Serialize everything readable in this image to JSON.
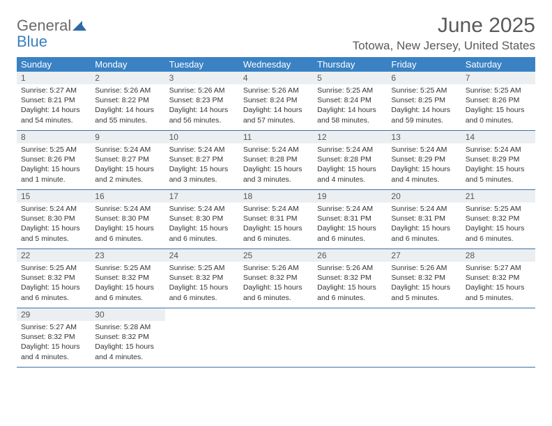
{
  "logo": {
    "general": "General",
    "blue": "Blue"
  },
  "title": "June 2025",
  "location": "Totowa, New Jersey, United States",
  "colors": {
    "header_bg": "#3a82c4",
    "header_text": "#ffffff",
    "rule": "#3a6fa5",
    "daynum_bg": "#eceff1",
    "body_text": "#333333",
    "title_text": "#5a5a5a",
    "logo_gray": "#6a6a6a",
    "logo_blue": "#3a7fbf"
  },
  "day_names": [
    "Sunday",
    "Monday",
    "Tuesday",
    "Wednesday",
    "Thursday",
    "Friday",
    "Saturday"
  ],
  "weeks": [
    [
      {
        "n": "1",
        "sr": "Sunrise: 5:27 AM",
        "ss": "Sunset: 8:21 PM",
        "d1": "Daylight: 14 hours",
        "d2": "and 54 minutes."
      },
      {
        "n": "2",
        "sr": "Sunrise: 5:26 AM",
        "ss": "Sunset: 8:22 PM",
        "d1": "Daylight: 14 hours",
        "d2": "and 55 minutes."
      },
      {
        "n": "3",
        "sr": "Sunrise: 5:26 AM",
        "ss": "Sunset: 8:23 PM",
        "d1": "Daylight: 14 hours",
        "d2": "and 56 minutes."
      },
      {
        "n": "4",
        "sr": "Sunrise: 5:26 AM",
        "ss": "Sunset: 8:24 PM",
        "d1": "Daylight: 14 hours",
        "d2": "and 57 minutes."
      },
      {
        "n": "5",
        "sr": "Sunrise: 5:25 AM",
        "ss": "Sunset: 8:24 PM",
        "d1": "Daylight: 14 hours",
        "d2": "and 58 minutes."
      },
      {
        "n": "6",
        "sr": "Sunrise: 5:25 AM",
        "ss": "Sunset: 8:25 PM",
        "d1": "Daylight: 14 hours",
        "d2": "and 59 minutes."
      },
      {
        "n": "7",
        "sr": "Sunrise: 5:25 AM",
        "ss": "Sunset: 8:26 PM",
        "d1": "Daylight: 15 hours",
        "d2": "and 0 minutes."
      }
    ],
    [
      {
        "n": "8",
        "sr": "Sunrise: 5:25 AM",
        "ss": "Sunset: 8:26 PM",
        "d1": "Daylight: 15 hours",
        "d2": "and 1 minute."
      },
      {
        "n": "9",
        "sr": "Sunrise: 5:24 AM",
        "ss": "Sunset: 8:27 PM",
        "d1": "Daylight: 15 hours",
        "d2": "and 2 minutes."
      },
      {
        "n": "10",
        "sr": "Sunrise: 5:24 AM",
        "ss": "Sunset: 8:27 PM",
        "d1": "Daylight: 15 hours",
        "d2": "and 3 minutes."
      },
      {
        "n": "11",
        "sr": "Sunrise: 5:24 AM",
        "ss": "Sunset: 8:28 PM",
        "d1": "Daylight: 15 hours",
        "d2": "and 3 minutes."
      },
      {
        "n": "12",
        "sr": "Sunrise: 5:24 AM",
        "ss": "Sunset: 8:28 PM",
        "d1": "Daylight: 15 hours",
        "d2": "and 4 minutes."
      },
      {
        "n": "13",
        "sr": "Sunrise: 5:24 AM",
        "ss": "Sunset: 8:29 PM",
        "d1": "Daylight: 15 hours",
        "d2": "and 4 minutes."
      },
      {
        "n": "14",
        "sr": "Sunrise: 5:24 AM",
        "ss": "Sunset: 8:29 PM",
        "d1": "Daylight: 15 hours",
        "d2": "and 5 minutes."
      }
    ],
    [
      {
        "n": "15",
        "sr": "Sunrise: 5:24 AM",
        "ss": "Sunset: 8:30 PM",
        "d1": "Daylight: 15 hours",
        "d2": "and 5 minutes."
      },
      {
        "n": "16",
        "sr": "Sunrise: 5:24 AM",
        "ss": "Sunset: 8:30 PM",
        "d1": "Daylight: 15 hours",
        "d2": "and 6 minutes."
      },
      {
        "n": "17",
        "sr": "Sunrise: 5:24 AM",
        "ss": "Sunset: 8:30 PM",
        "d1": "Daylight: 15 hours",
        "d2": "and 6 minutes."
      },
      {
        "n": "18",
        "sr": "Sunrise: 5:24 AM",
        "ss": "Sunset: 8:31 PM",
        "d1": "Daylight: 15 hours",
        "d2": "and 6 minutes."
      },
      {
        "n": "19",
        "sr": "Sunrise: 5:24 AM",
        "ss": "Sunset: 8:31 PM",
        "d1": "Daylight: 15 hours",
        "d2": "and 6 minutes."
      },
      {
        "n": "20",
        "sr": "Sunrise: 5:24 AM",
        "ss": "Sunset: 8:31 PM",
        "d1": "Daylight: 15 hours",
        "d2": "and 6 minutes."
      },
      {
        "n": "21",
        "sr": "Sunrise: 5:25 AM",
        "ss": "Sunset: 8:32 PM",
        "d1": "Daylight: 15 hours",
        "d2": "and 6 minutes."
      }
    ],
    [
      {
        "n": "22",
        "sr": "Sunrise: 5:25 AM",
        "ss": "Sunset: 8:32 PM",
        "d1": "Daylight: 15 hours",
        "d2": "and 6 minutes."
      },
      {
        "n": "23",
        "sr": "Sunrise: 5:25 AM",
        "ss": "Sunset: 8:32 PM",
        "d1": "Daylight: 15 hours",
        "d2": "and 6 minutes."
      },
      {
        "n": "24",
        "sr": "Sunrise: 5:25 AM",
        "ss": "Sunset: 8:32 PM",
        "d1": "Daylight: 15 hours",
        "d2": "and 6 minutes."
      },
      {
        "n": "25",
        "sr": "Sunrise: 5:26 AM",
        "ss": "Sunset: 8:32 PM",
        "d1": "Daylight: 15 hours",
        "d2": "and 6 minutes."
      },
      {
        "n": "26",
        "sr": "Sunrise: 5:26 AM",
        "ss": "Sunset: 8:32 PM",
        "d1": "Daylight: 15 hours",
        "d2": "and 6 minutes."
      },
      {
        "n": "27",
        "sr": "Sunrise: 5:26 AM",
        "ss": "Sunset: 8:32 PM",
        "d1": "Daylight: 15 hours",
        "d2": "and 5 minutes."
      },
      {
        "n": "28",
        "sr": "Sunrise: 5:27 AM",
        "ss": "Sunset: 8:32 PM",
        "d1": "Daylight: 15 hours",
        "d2": "and 5 minutes."
      }
    ],
    [
      {
        "n": "29",
        "sr": "Sunrise: 5:27 AM",
        "ss": "Sunset: 8:32 PM",
        "d1": "Daylight: 15 hours",
        "d2": "and 4 minutes."
      },
      {
        "n": "30",
        "sr": "Sunrise: 5:28 AM",
        "ss": "Sunset: 8:32 PM",
        "d1": "Daylight: 15 hours",
        "d2": "and 4 minutes."
      },
      null,
      null,
      null,
      null,
      null
    ]
  ]
}
